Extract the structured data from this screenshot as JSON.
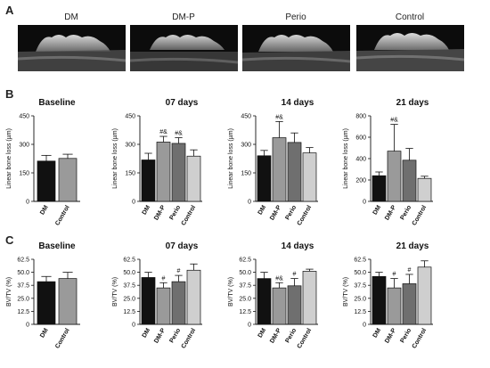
{
  "panels": {
    "a": "A",
    "b": "B",
    "c": "C"
  },
  "micro": {
    "labels": [
      "DM",
      "DM-P",
      "Perio",
      "Control"
    ]
  },
  "chart_data": [
    {
      "type": "bar",
      "row": "B",
      "title": "Baseline",
      "ylabel": "Linear bone loss (µm)",
      "categories": [
        "DM",
        "Control"
      ],
      "values": [
        212,
        226
      ],
      "errors": [
        30,
        22
      ],
      "colors": [
        "#111111",
        "#9a9a9a"
      ],
      "ylim": [
        0,
        450
      ],
      "yticks": [
        "0",
        "150",
        "300",
        "450"
      ],
      "annotations": [
        "",
        ""
      ]
    },
    {
      "type": "bar",
      "row": "B",
      "title": "07 days",
      "ylabel": "Linear bone loss (µm)",
      "categories": [
        "DM",
        "DM-P",
        "Perio",
        "Control"
      ],
      "values": [
        218,
        312,
        305,
        238
      ],
      "errors": [
        35,
        30,
        30,
        33
      ],
      "colors": [
        "#111111",
        "#9a9a9a",
        "#6f6f6f",
        "#cfcfcf"
      ],
      "ylim": [
        0,
        450
      ],
      "yticks": [
        "0",
        "150",
        "300",
        "450"
      ],
      "annotations": [
        "",
        "#&",
        "#&",
        ""
      ]
    },
    {
      "type": "bar",
      "row": "B",
      "title": "14 days",
      "ylabel": "Linear bone loss (µm)",
      "categories": [
        "DM",
        "DM-P",
        "Perio",
        "Control"
      ],
      "values": [
        240,
        335,
        310,
        255
      ],
      "errors": [
        28,
        85,
        50,
        28
      ],
      "colors": [
        "#111111",
        "#9a9a9a",
        "#6f6f6f",
        "#cfcfcf"
      ],
      "ylim": [
        0,
        450
      ],
      "yticks": [
        "0",
        "150",
        "300",
        "450"
      ],
      "annotations": [
        "",
        "#&",
        "",
        ""
      ]
    },
    {
      "type": "bar",
      "row": "B",
      "title": "21 days",
      "ylabel": "Linear bone loss (µm)",
      "categories": [
        "DM",
        "DM-P",
        "Perio",
        "Control"
      ],
      "values": [
        240,
        470,
        385,
        215
      ],
      "errors": [
        35,
        250,
        110,
        20
      ],
      "colors": [
        "#111111",
        "#9a9a9a",
        "#6f6f6f",
        "#cfcfcf"
      ],
      "ylim": [
        0,
        800
      ],
      "yticks": [
        "0",
        "200",
        "400",
        "600",
        "800"
      ],
      "annotations": [
        "",
        "#&",
        "",
        ""
      ]
    },
    {
      "type": "bar",
      "row": "C",
      "title": "Baseline",
      "ylabel": "BV/TV (%)",
      "categories": [
        "DM",
        "Control"
      ],
      "values": [
        41,
        44
      ],
      "errors": [
        5,
        6
      ],
      "colors": [
        "#111111",
        "#9a9a9a"
      ],
      "ylim": [
        0,
        62.5
      ],
      "yticks": [
        "0",
        "12.5",
        "25.0",
        "37.5",
        "50.0",
        "62.5"
      ],
      "annotations": [
        "",
        ""
      ]
    },
    {
      "type": "bar",
      "row": "C",
      "title": "07 days",
      "ylabel": "BV/TV (%)",
      "categories": [
        "DM",
        "DM-P",
        "Perio",
        "Control"
      ],
      "values": [
        45,
        35,
        41,
        52
      ],
      "errors": [
        5,
        5,
        6,
        6
      ],
      "colors": [
        "#111111",
        "#9a9a9a",
        "#6f6f6f",
        "#cfcfcf"
      ],
      "ylim": [
        0,
        62.5
      ],
      "yticks": [
        "0",
        "12.5",
        "25.0",
        "37.5",
        "50.0",
        "62.5"
      ],
      "annotations": [
        "",
        "#",
        "#",
        ""
      ]
    },
    {
      "type": "bar",
      "row": "C",
      "title": "14 days",
      "ylabel": "BV/TV (%)",
      "categories": [
        "DM",
        "DM-P",
        "Perio",
        "Control"
      ],
      "values": [
        44,
        35,
        37,
        51
      ],
      "errors": [
        6,
        5,
        7,
        2
      ],
      "colors": [
        "#111111",
        "#9a9a9a",
        "#6f6f6f",
        "#cfcfcf"
      ],
      "ylim": [
        0,
        62.5
      ],
      "yticks": [
        "0",
        "12.5",
        "25.0",
        "37.5",
        "50.0",
        "62.5"
      ],
      "annotations": [
        "",
        "#&",
        "#",
        ""
      ]
    },
    {
      "type": "bar",
      "row": "C",
      "title": "21 days",
      "ylabel": "BV/TV (%)",
      "categories": [
        "DM",
        "DM-P",
        "Perio",
        "Control"
      ],
      "values": [
        46,
        35,
        39,
        55
      ],
      "errors": [
        4,
        9,
        9,
        6
      ],
      "colors": [
        "#111111",
        "#9a9a9a",
        "#6f6f6f",
        "#cfcfcf"
      ],
      "ylim": [
        0,
        62.5
      ],
      "yticks": [
        "0",
        "12.5",
        "25.0",
        "37.5",
        "50.0",
        "62.5"
      ],
      "annotations": [
        "",
        "#",
        "#",
        ""
      ]
    }
  ]
}
